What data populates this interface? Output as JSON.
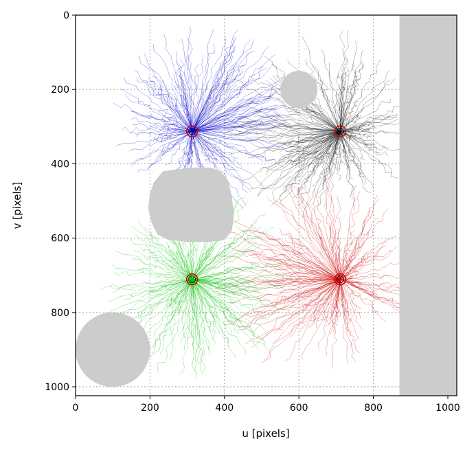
{
  "chart_data": {
    "type": "line",
    "title": "",
    "xlabel": "u [pixels]",
    "ylabel": "v [pixels]",
    "xlim": [
      0,
      1024
    ],
    "ylim": [
      1024,
      0
    ],
    "y_inverted": true,
    "xticks": [
      0,
      200,
      400,
      600,
      800,
      1000
    ],
    "yticks": [
      0,
      200,
      400,
      600,
      800,
      1000
    ],
    "grid": true,
    "legend": "none",
    "obstacles": [
      {
        "shape": "circle",
        "cx": 600,
        "cy": 200,
        "r": 50,
        "color": "#cccccc"
      },
      {
        "shape": "circle",
        "cx": 100,
        "cy": 900,
        "r": 100,
        "color": "#cccccc"
      },
      {
        "shape": "rect",
        "x0": 870,
        "x1": 1024,
        "y0": 0,
        "y1": 1024,
        "color": "#cccccc"
      },
      {
        "shape": "polygon",
        "color": "#cccccc",
        "points": [
          [
            210,
            450
          ],
          [
            235,
            420
          ],
          [
            270,
            415
          ],
          [
            320,
            410
          ],
          [
            360,
            410
          ],
          [
            390,
            420
          ],
          [
            410,
            445
          ],
          [
            420,
            490
          ],
          [
            425,
            540
          ],
          [
            420,
            580
          ],
          [
            400,
            605
          ],
          [
            360,
            610
          ],
          [
            300,
            610
          ],
          [
            250,
            605
          ],
          [
            220,
            590
          ],
          [
            205,
            560
          ],
          [
            195,
            520
          ],
          [
            200,
            480
          ]
        ]
      }
    ],
    "goals": [
      {
        "u": 313,
        "v": 313,
        "color": "#cc0000"
      },
      {
        "u": 711,
        "v": 313,
        "color": "#cc0000"
      },
      {
        "u": 313,
        "v": 711,
        "color": "#cc0000"
      },
      {
        "u": 711,
        "v": 711,
        "color": "#cc0000"
      }
    ],
    "series": [
      {
        "color": "#0000cc",
        "goal_u": 313,
        "goal_v": 313,
        "center_u": 360,
        "center_v": 280,
        "spread": 230
      },
      {
        "color": "#111111",
        "goal_u": 711,
        "goal_v": 313,
        "center_u": 650,
        "center_v": 290,
        "spread": 230
      },
      {
        "color": "#00bb00",
        "goal_u": 313,
        "goal_v": 711,
        "center_u": 330,
        "center_v": 720,
        "spread": 230
      },
      {
        "color": "#cc0000",
        "goal_u": 711,
        "goal_v": 711,
        "center_u": 640,
        "center_v": 700,
        "spread": 240
      }
    ]
  }
}
